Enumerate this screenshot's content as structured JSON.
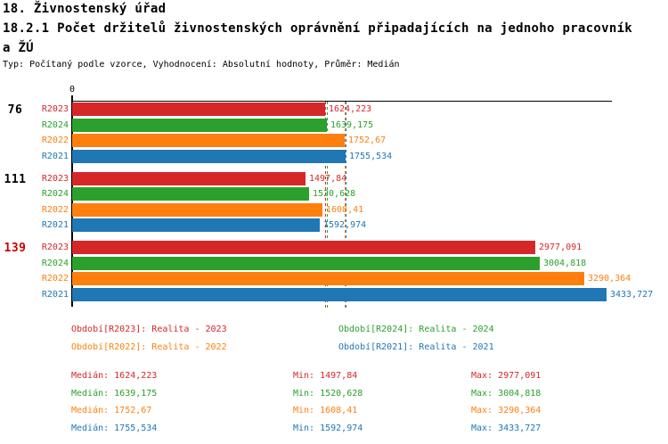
{
  "header": {
    "line1": "18. Živnostenský úřad",
    "line2": "18.2.1 Počet držitelů živnostenských oprávnění připadajících na jednoho pracovník",
    "line3": "a ŽÚ",
    "meta": "Typ: Počítaný podle vzorce, Vyhodnocení: Absolutní hodnoty, Průměr: Medián"
  },
  "axis": {
    "zero_label": "0"
  },
  "series_colors": {
    "R2023": "#d62728",
    "R2024": "#2ca02c",
    "R2022": "#ff7f0e",
    "R2021": "#1f77b4"
  },
  "chart_data": {
    "type": "bar",
    "orientation": "horizontal",
    "title": "18.2.1 Počet držitelů živnostenských oprávnění připadajících na jednoho pracovníka ŽÚ",
    "xlabel": "",
    "ylabel": "",
    "xlim": [
      0,
      3550
    ],
    "x_tick_labels": [
      "0"
    ],
    "grid": false,
    "series_order": [
      "R2023",
      "R2024",
      "R2022",
      "R2021"
    ],
    "groups": [
      {
        "label": "76",
        "label_color": "#000000",
        "bars": [
          {
            "series": "R2023",
            "value": 1624.223,
            "value_label": "1624,223"
          },
          {
            "series": "R2024",
            "value": 1639.175,
            "value_label": "1639,175"
          },
          {
            "series": "R2022",
            "value": 1752.67,
            "value_label": "1752,67"
          },
          {
            "series": "R2021",
            "value": 1755.534,
            "value_label": "1755,534"
          }
        ]
      },
      {
        "label": "111",
        "label_color": "#000000",
        "bars": [
          {
            "series": "R2023",
            "value": 1497.84,
            "value_label": "1497,84"
          },
          {
            "series": "R2024",
            "value": 1520.628,
            "value_label": "1520,628"
          },
          {
            "series": "R2022",
            "value": 1608.41,
            "value_label": "1608,41"
          },
          {
            "series": "R2021",
            "value": 1592.974,
            "value_label": "1592,974"
          }
        ]
      },
      {
        "label": "139",
        "label_color": "#cc0000",
        "bars": [
          {
            "series": "R2023",
            "value": 2977.091,
            "value_label": "2977,091"
          },
          {
            "series": "R2024",
            "value": 3004.818,
            "value_label": "3004,818"
          },
          {
            "series": "R2022",
            "value": 3290.364,
            "value_label": "3290,364"
          },
          {
            "series": "R2021",
            "value": 3433.727,
            "value_label": "3433,727"
          }
        ]
      }
    ],
    "median_lines": [
      {
        "series": "R2023",
        "value": 1624.223
      },
      {
        "series": "R2024",
        "value": 1639.175
      },
      {
        "series": "R2022",
        "value": 1752.67
      },
      {
        "series": "R2021",
        "value": 1755.534
      }
    ]
  },
  "legend": {
    "items": [
      {
        "series": "R2023",
        "text": "Období[R2023]: Realita - 2023"
      },
      {
        "series": "R2024",
        "text": "Období[R2024]: Realita - 2024"
      },
      {
        "series": "R2022",
        "text": "Období[R2022]: Realita - 2022"
      },
      {
        "series": "R2021",
        "text": "Období[R2021]: Realita - 2021"
      }
    ]
  },
  "stats": {
    "rows": [
      {
        "series": "R2023",
        "median": "Medián: 1624,223",
        "min": "Min: 1497,84",
        "max": "Max: 2977,091"
      },
      {
        "series": "R2024",
        "median": "Medián: 1639,175",
        "min": "Min: 1520,628",
        "max": "Max: 3004,818"
      },
      {
        "series": "R2022",
        "median": "Medián: 1752,67",
        "min": "Min: 1608,41",
        "max": "Max: 3290,364"
      },
      {
        "series": "R2021",
        "median": "Medián: 1755,534",
        "min": "Min: 1592,974",
        "max": "Max: 3433,727"
      }
    ]
  }
}
